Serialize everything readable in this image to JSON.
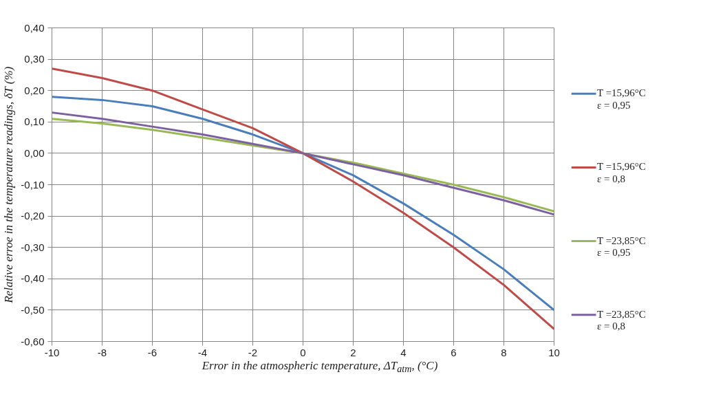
{
  "chart_data": {
    "type": "line",
    "xlabel": "Error in the atmospheric temperature, ΔT$_{atm}$, (°C)",
    "ylabel": "Relative erroe in the temperature readings, δT (%)",
    "x": [
      -10,
      -8,
      -6,
      -4,
      -2,
      0,
      2,
      4,
      6,
      8,
      10
    ],
    "series": [
      {
        "name": "T =15,96°C\nε = 0,95",
        "color": "#4a7ebb",
        "values": [
          0.18,
          0.17,
          0.15,
          0.11,
          0.06,
          0,
          -0.07,
          -0.16,
          -0.26,
          -0.37,
          -0.5
        ]
      },
      {
        "name": "T =15,96°C\nε = 0,8",
        "color": "#be4b48",
        "values": [
          0.27,
          0.24,
          0.2,
          0.14,
          0.08,
          0,
          -0.09,
          -0.19,
          -0.3,
          -0.42,
          -0.56
        ]
      },
      {
        "name": "T =23,85°C\nε = 0,95",
        "color": "#98b954",
        "values": [
          0.11,
          0.095,
          0.075,
          0.05,
          0.025,
          0,
          -0.03,
          -0.065,
          -0.1,
          -0.14,
          -0.185
        ]
      },
      {
        "name": "T =23,85°C\nε = 0,8",
        "color": "#7d60a0",
        "values": [
          0.13,
          0.11,
          0.085,
          0.06,
          0.03,
          0,
          -0.035,
          -0.07,
          -0.11,
          -0.15,
          -0.195
        ]
      }
    ],
    "xlim": [
      -10,
      10
    ],
    "ylim": [
      -0.6,
      0.4
    ],
    "xticks": [
      -10,
      -8,
      -6,
      -4,
      -2,
      0,
      2,
      4,
      6,
      8,
      10
    ],
    "yticks": [
      {
        "value": 0.4,
        "label": "0,40"
      },
      {
        "value": 0.3,
        "label": "0,30"
      },
      {
        "value": 0.2,
        "label": "0,20"
      },
      {
        "value": 0.1,
        "label": "0,10"
      },
      {
        "value": 0,
        "label": "0,00"
      },
      {
        "value": -0.1,
        "label": "-0,10"
      },
      {
        "value": -0.2,
        "label": "-0,20"
      },
      {
        "value": -0.3,
        "label": "-0,30"
      },
      {
        "value": -0.4,
        "label": "-0,40"
      },
      {
        "value": -0.5,
        "label": "-0,50"
      },
      {
        "value": -0.6,
        "label": "-0,60"
      }
    ],
    "grid": true,
    "legend": "right",
    "marker": "none",
    "line_style": "solid"
  }
}
